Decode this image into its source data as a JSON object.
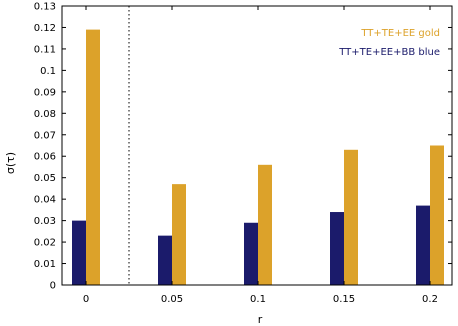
{
  "chart_data": {
    "type": "bar",
    "categories": [
      "0",
      "0.05",
      "0.1",
      "0.15",
      "0.2"
    ],
    "xlabel": "r",
    "ylabel": "σ(τ)",
    "ylim": [
      0,
      0.13
    ],
    "yticks": [
      "0",
      "0.01",
      "0.02",
      "0.03",
      "0.04",
      "0.05",
      "0.06",
      "0.07",
      "0.08",
      "0.09",
      "0.1",
      "0.11",
      "0.12",
      "0.13"
    ],
    "grid": false,
    "legend_position": "top-right",
    "reference_line": {
      "style": "dotted",
      "between_categories": [
        "0",
        "0.05"
      ]
    },
    "series": [
      {
        "name": "TT+TE+EE+BB blue",
        "color": "#1b1b6b",
        "values": [
          0.03,
          0.023,
          0.029,
          0.034,
          0.037
        ]
      },
      {
        "name": "TT+TE+EE gold",
        "color": "#dca22a",
        "values": [
          0.119,
          0.047,
          0.056,
          0.063,
          0.065
        ]
      }
    ],
    "legend_order": [
      1,
      0
    ]
  }
}
